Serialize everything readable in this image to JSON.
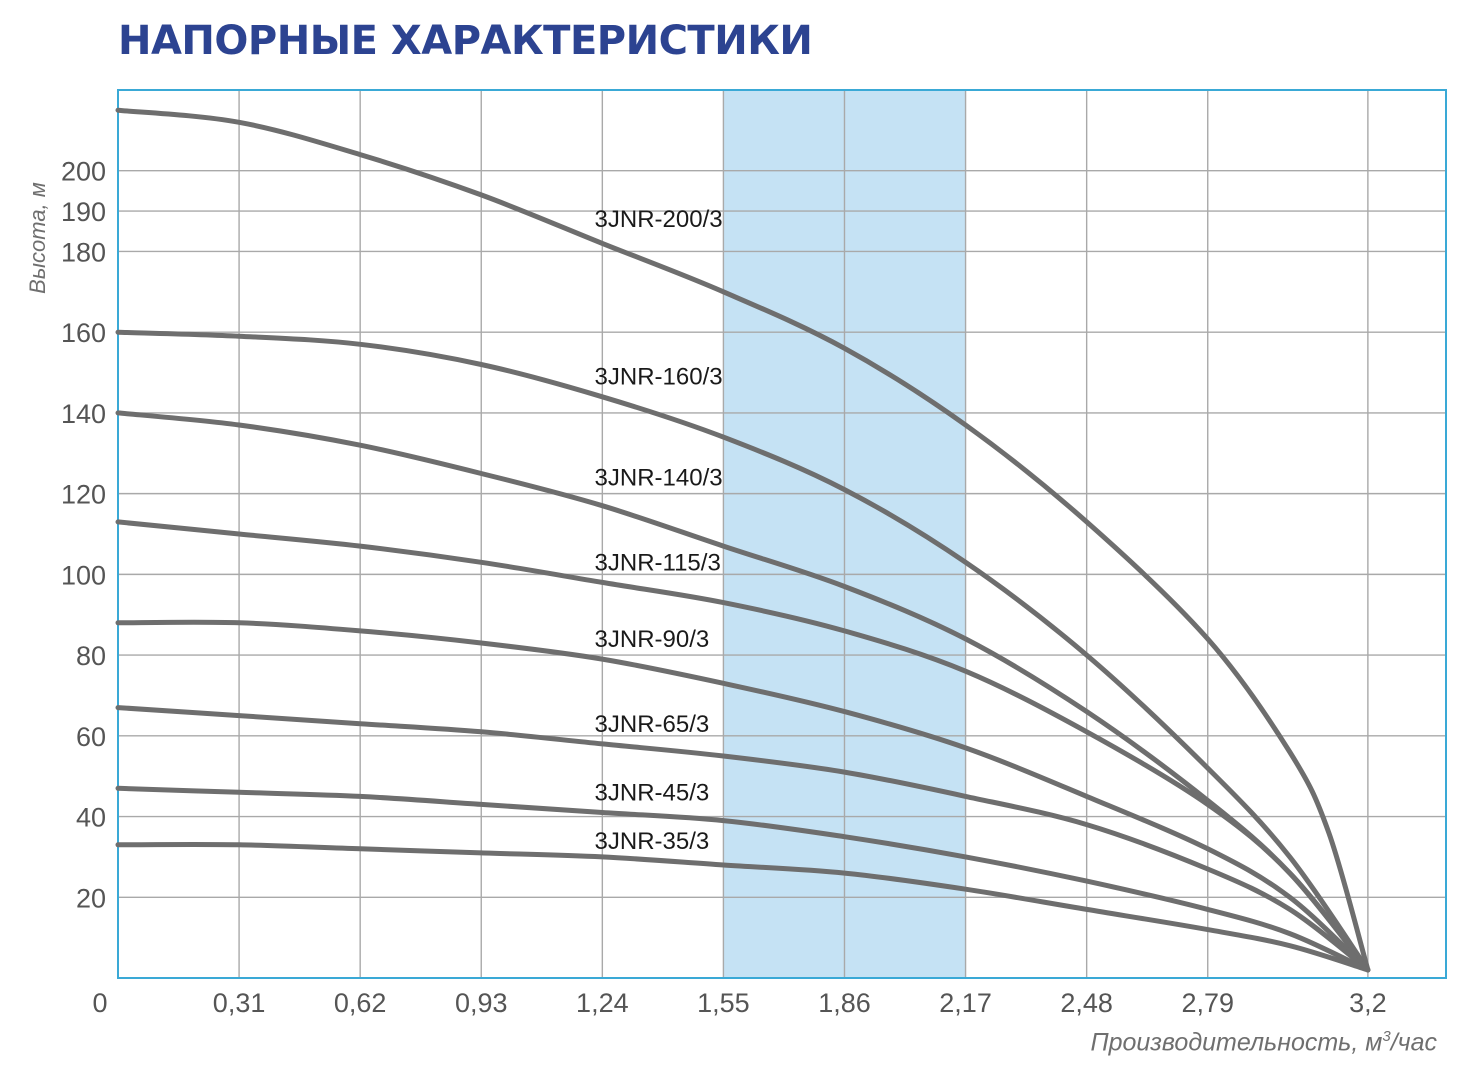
{
  "chart_data": {
    "type": "line",
    "title": "НАПОРНЫЕ ХАРАКТЕРИСТИКИ",
    "xlabel_main": "Производительность, м",
    "xlabel_sup": "3",
    "xlabel_tail": "/час",
    "ylabel": "Высота, м",
    "xlim": [
      0,
      3.4
    ],
    "ylim": [
      0,
      220
    ],
    "x_ticks": [
      0.31,
      0.62,
      0.93,
      1.24,
      1.55,
      1.86,
      2.17,
      2.48,
      2.79,
      3.2
    ],
    "x_tick_labels": [
      "0,31",
      "0,62",
      "0,93",
      "1,24",
      "1,55",
      "1,86",
      "2,17",
      "2,48",
      "2,79",
      "3,2"
    ],
    "x_origin_label": "0",
    "y_ticks": [
      20,
      40,
      60,
      80,
      100,
      120,
      140,
      160,
      180,
      190,
      200
    ],
    "y_tick_labels": [
      "20",
      "40",
      "60",
      "80",
      "100",
      "120",
      "140",
      "160",
      "180",
      "190",
      "200"
    ],
    "grid": true,
    "highlight_range": [
      1.55,
      2.17
    ],
    "colors": {
      "line": "#6e6e6e",
      "grid": "#a9a9a9",
      "frame": "#3aa9d6",
      "band": "#c5e2f4",
      "title": "#2c4391"
    },
    "series": [
      {
        "name": "3JNR-200/3",
        "x": [
          0,
          0.31,
          0.62,
          0.93,
          1.24,
          1.55,
          1.86,
          2.17,
          2.48,
          2.79,
          3.0,
          3.1,
          3.2
        ],
        "y": [
          215,
          212,
          204,
          194,
          182,
          170,
          156,
          137,
          113,
          84,
          56,
          36,
          2
        ]
      },
      {
        "name": "3JNR-160/3",
        "x": [
          0,
          0.31,
          0.62,
          0.93,
          1.24,
          1.55,
          1.86,
          2.17,
          2.48,
          2.79,
          3.0,
          3.2
        ],
        "y": [
          160,
          159,
          157,
          152,
          144,
          134,
          121,
          103,
          80,
          52,
          30,
          2
        ]
      },
      {
        "name": "3JNR-140/3",
        "x": [
          0,
          0.31,
          0.62,
          0.93,
          1.24,
          1.55,
          1.86,
          2.17,
          2.48,
          2.79,
          3.0,
          3.2
        ],
        "y": [
          140,
          137,
          132,
          125,
          117,
          107,
          97,
          84,
          66,
          44,
          26,
          2
        ]
      },
      {
        "name": "3JNR-115/3",
        "x": [
          0,
          0.31,
          0.62,
          0.93,
          1.24,
          1.55,
          1.86,
          2.17,
          2.48,
          2.79,
          3.0,
          3.2
        ],
        "y": [
          113,
          110,
          107,
          103,
          98,
          93,
          86,
          76,
          61,
          43,
          26,
          2
        ]
      },
      {
        "name": "3JNR-90/3",
        "x": [
          0,
          0.31,
          0.62,
          0.93,
          1.24,
          1.55,
          1.86,
          2.17,
          2.48,
          2.79,
          3.0,
          3.2
        ],
        "y": [
          88,
          88,
          86,
          83,
          79,
          73,
          66,
          57,
          45,
          32,
          20,
          2
        ]
      },
      {
        "name": "3JNR-65/3",
        "x": [
          0,
          0.31,
          0.62,
          0.93,
          1.24,
          1.55,
          1.86,
          2.17,
          2.48,
          2.79,
          3.0,
          3.2
        ],
        "y": [
          67,
          65,
          63,
          61,
          58,
          55,
          51,
          45,
          38,
          27,
          17,
          2
        ]
      },
      {
        "name": "3JNR-45/3",
        "x": [
          0,
          0.31,
          0.62,
          0.93,
          1.24,
          1.55,
          1.86,
          2.17,
          2.48,
          2.79,
          3.0,
          3.2
        ],
        "y": [
          47,
          46,
          45,
          43,
          41,
          39,
          35,
          30,
          24,
          17,
          11,
          2
        ]
      },
      {
        "name": "3JNR-35/3",
        "x": [
          0,
          0.31,
          0.62,
          0.93,
          1.24,
          1.55,
          1.86,
          2.17,
          2.48,
          2.79,
          3.0,
          3.2
        ],
        "y": [
          33,
          33,
          32,
          31,
          30,
          28,
          26,
          22,
          17,
          12,
          8,
          2
        ]
      }
    ],
    "annotations": [
      {
        "text": "3JNR-200/3",
        "x": 1.22,
        "y": 186
      },
      {
        "text": "3JNR-160/3",
        "x": 1.22,
        "y": 147
      },
      {
        "text": "3JNR-140/3",
        "x": 1.22,
        "y": 122
      },
      {
        "text": "3JNR-115/3",
        "x": 1.22,
        "y": 101
      },
      {
        "text": "3JNR-90/3",
        "x": 1.22,
        "y": 82
      },
      {
        "text": "3JNR-65/3",
        "x": 1.22,
        "y": 61
      },
      {
        "text": "3JNR-45/3",
        "x": 1.22,
        "y": 44
      },
      {
        "text": "3JNR-35/3",
        "x": 1.22,
        "y": 32
      }
    ]
  }
}
